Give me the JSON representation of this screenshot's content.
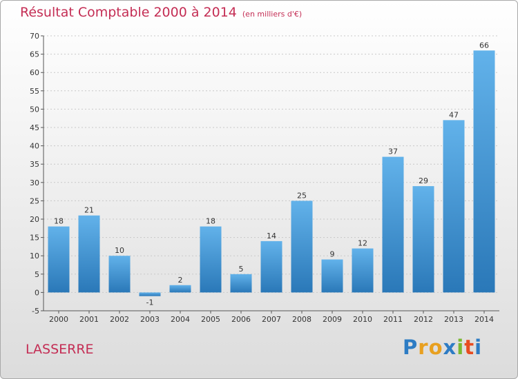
{
  "header": {
    "title": "Résultat Comptable 2000 à 2014",
    "subtitle": "(en milliers d'€)"
  },
  "footer": {
    "commune": "LASSERRE",
    "brand": [
      "P",
      "r",
      "o",
      "x",
      "i",
      "t",
      "i"
    ]
  },
  "colors": {
    "title": "#c42d54",
    "bar_light": "#62b2ea",
    "bar_dark": "#2a78b8",
    "brand": [
      "#2d7cc4",
      "#e8a020",
      "#e8a020",
      "#2d7cc4",
      "#7ab830",
      "#e84c20",
      "#2d7cc4"
    ]
  },
  "chart_data": {
    "type": "bar",
    "title": "Résultat Comptable 2000 à 2014",
    "xlabel": "",
    "ylabel": "",
    "categories": [
      "2000",
      "2001",
      "2002",
      "2003",
      "2004",
      "2005",
      "2006",
      "2007",
      "2008",
      "2009",
      "2010",
      "2011",
      "2012",
      "2013",
      "2014"
    ],
    "values": [
      18,
      21,
      10,
      -1,
      2,
      18,
      5,
      14,
      25,
      9,
      12,
      37,
      29,
      47,
      66
    ],
    "ylim": [
      -5,
      70
    ],
    "yticks": [
      -5,
      0,
      5,
      10,
      15,
      20,
      25,
      30,
      35,
      40,
      45,
      50,
      55,
      60,
      65,
      70
    ],
    "grid": true,
    "legend": "none"
  }
}
